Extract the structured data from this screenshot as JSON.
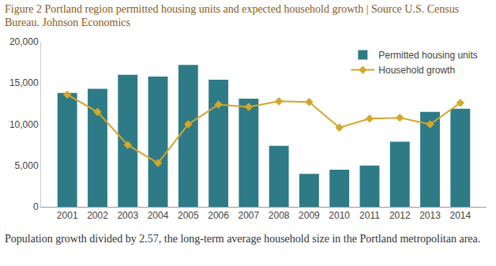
{
  "chart_data": {
    "type": "bar",
    "title": "Figure 2 Portland region permitted housing units and expected household growth | Source U.S. Census Bureau. Johnson Economics",
    "annotations": [
      "Population growth divided by 2.57, the long-term average household size in the Portland metropolitan area."
    ],
    "categories": [
      "2001",
      "2002",
      "2003",
      "2004",
      "2005",
      "2006",
      "2007",
      "2008",
      "2009",
      "2010",
      "2011",
      "2012",
      "2013",
      "2014"
    ],
    "series": [
      {
        "name": "Permitted housing units",
        "type": "bar",
        "color": "#2e7b87",
        "values": [
          13800,
          14300,
          16000,
          15800,
          17200,
          15400,
          13100,
          7400,
          4000,
          4500,
          5000,
          7900,
          11500,
          11900
        ]
      },
      {
        "name": "Household growth",
        "type": "line",
        "color": "#d4a62a",
        "marker": "diamond",
        "values": [
          13600,
          11500,
          7500,
          5300,
          10000,
          12400,
          12100,
          12800,
          12700,
          9600,
          10700,
          10800,
          10000,
          12600
        ]
      }
    ],
    "ylim": [
      0,
      20000
    ],
    "yticks": [
      0,
      {
        "value": 5000,
        "label": "5,000"
      },
      {
        "value": 10000,
        "label": "10,000"
      },
      {
        "value": 15000,
        "label": "15,000"
      },
      {
        "value": 20000,
        "label": "20,000"
      }
    ],
    "grid": false,
    "legend": "top-right"
  }
}
